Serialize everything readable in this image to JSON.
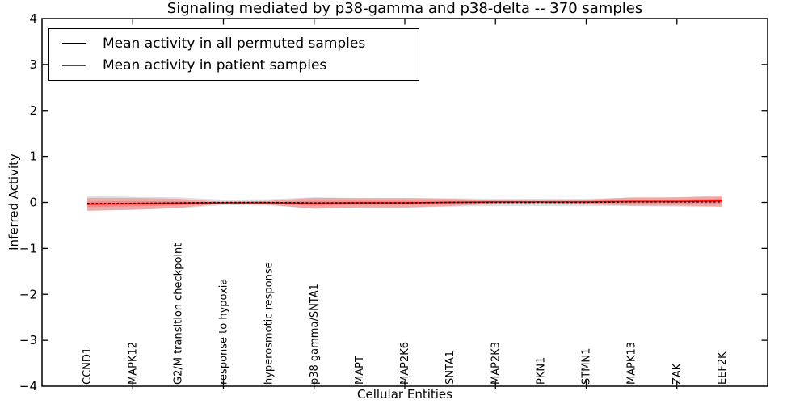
{
  "title": "Signaling mediated by p38-gamma and p38-delta -- 370 samples",
  "axes": {
    "x_label": "Cellular Entities",
    "y_label": "Inferred Activity",
    "y_tick_values": [
      4,
      3,
      2,
      1,
      0,
      -1,
      -2,
      -3,
      -4
    ],
    "y_tick_labels": [
      "4",
      "3",
      "2",
      "1",
      "0",
      "−1",
      "−2",
      "−3",
      "−4"
    ],
    "x_major_tick_positions": [
      2,
      4,
      6,
      8,
      10,
      12,
      14
    ]
  },
  "legend": {
    "position": "upper left",
    "entries": [
      {
        "label": "Mean activity in all permuted samples",
        "color": "#000000"
      },
      {
        "label": "Mean activity in patient samples",
        "color": "#ff0000"
      }
    ]
  },
  "chart_data": {
    "type": "line",
    "title": "Signaling mediated by p38-gamma and p38-delta -- 370 samples",
    "xlabel": "Cellular Entities",
    "ylabel": "Inferred Activity",
    "xlim": [
      0,
      16
    ],
    "ylim": [
      -4,
      4
    ],
    "grid": false,
    "legend_position": "upper left",
    "categories": [
      "CCND1",
      "MAPK12",
      "G2/M transition checkpoint",
      "response to hypoxia",
      "hyperosmotic response",
      "p38 gamma/SNTA1",
      "MAPT",
      "MAP2K6",
      "SNTA1",
      "MAP2K3",
      "PKN1",
      "STMN1",
      "MAPK13",
      "ZAK",
      "EEF2K"
    ],
    "x": [
      1,
      2,
      3,
      4,
      5,
      6,
      7,
      8,
      9,
      10,
      11,
      12,
      13,
      14,
      15
    ],
    "series": [
      {
        "name": "Mean activity in all permuted samples",
        "kind": "line",
        "color": "#000000",
        "dashed": true,
        "values": [
          -0.02,
          -0.02,
          -0.01,
          0.0,
          0.0,
          -0.01,
          -0.01,
          -0.01,
          0.0,
          0.0,
          0.0,
          0.0,
          0.01,
          0.01,
          0.01
        ]
      },
      {
        "name": "Mean activity in patient samples",
        "kind": "line",
        "color": "#ff0000",
        "dashed": false,
        "values": [
          -0.04,
          -0.03,
          -0.02,
          -0.01,
          -0.01,
          -0.02,
          -0.01,
          -0.01,
          0.0,
          0.01,
          0.01,
          0.01,
          0.02,
          0.02,
          0.03
        ]
      },
      {
        "name": "Permuted samples std band",
        "kind": "band",
        "color": "#999999",
        "opacity": 0.3,
        "center_series": "Mean activity in all permuted samples",
        "halfwidths": [
          0.16,
          0.14,
          0.12,
          0.06,
          0.07,
          0.12,
          0.11,
          0.11,
          0.09,
          0.08,
          0.08,
          0.08,
          0.09,
          0.1,
          0.11
        ]
      },
      {
        "name": "Patient samples std band",
        "kind": "band",
        "color": "#ff6666",
        "opacity": 0.45,
        "center_series": "Mean activity in patient samples",
        "halfwidths": [
          0.14,
          0.13,
          0.1,
          0.02,
          0.04,
          0.12,
          0.1,
          0.1,
          0.08,
          0.04,
          0.03,
          0.05,
          0.09,
          0.09,
          0.12
        ]
      }
    ]
  }
}
